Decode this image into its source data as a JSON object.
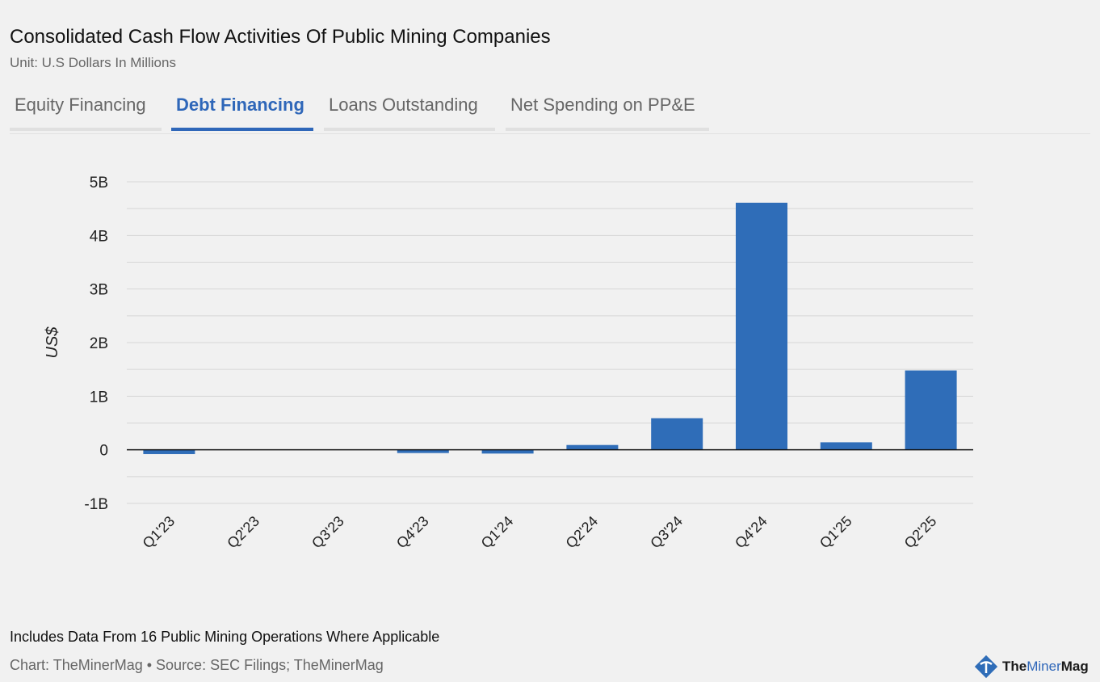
{
  "header": {
    "title": "Consolidated Cash Flow Activities Of Public Mining Companies",
    "subtitle": "Unit: U.S Dollars In Millions"
  },
  "tabs": [
    {
      "label": "Equity Financing",
      "active": false
    },
    {
      "label": "Debt Financing",
      "active": true
    },
    {
      "label": "Loans Outstanding",
      "active": false
    },
    {
      "label": "Net Spending on PP&E",
      "active": false
    }
  ],
  "chart_data": {
    "type": "bar",
    "categories": [
      "Q1'23",
      "Q2'23",
      "Q3'23",
      "Q4'23",
      "Q1'24",
      "Q2'24",
      "Q3'24",
      "Q4'24",
      "Q1'25",
      "Q2'25"
    ],
    "values": [
      -0.08,
      0,
      0,
      -0.06,
      -0.07,
      0.09,
      0.59,
      4.61,
      0.14,
      1.48
    ],
    "value_unit": "billions",
    "ylabel": "US$",
    "ylim": [
      -1,
      5
    ],
    "yticks": [
      "-1B",
      "0",
      "1B",
      "2B",
      "3B",
      "4B",
      "5B"
    ],
    "grid": true,
    "bar_color": "#2f6db8"
  },
  "footer": {
    "note": "Includes Data From 16 Public Mining Operations Where Applicable",
    "credit": "Chart: TheMinerMag • Source: SEC Filings; TheMinerMag",
    "logo_text": "TheMinerMag",
    "logo_a": "The",
    "logo_b": "Miner",
    "logo_c": "Mag"
  }
}
